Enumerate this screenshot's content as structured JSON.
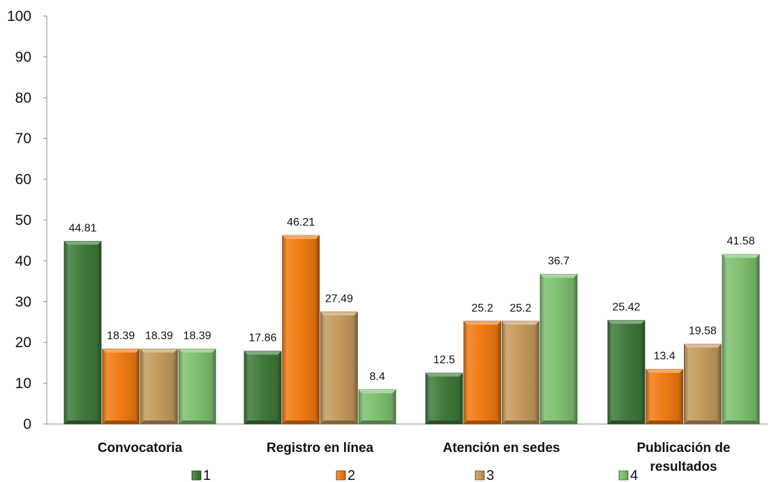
{
  "chart_data": {
    "type": "bar",
    "categories": [
      [
        "Convocatoria"
      ],
      [
        "Registro en línea"
      ],
      [
        "Atención en sedes"
      ],
      [
        "Publicación de",
        "resultados"
      ]
    ],
    "series": [
      {
        "name": "1",
        "values": [
          44.81,
          17.86,
          12.5,
          25.42
        ],
        "color": "#3f7a3a"
      },
      {
        "name": "2",
        "values": [
          18.39,
          46.21,
          25.2,
          13.4
        ],
        "color": "#f07a12"
      },
      {
        "name": "3",
        "values": [
          18.39,
          27.49,
          25.2,
          19.58
        ],
        "color": "#c49a5c"
      },
      {
        "name": "4",
        "values": [
          18.39,
          8.4,
          36.7,
          41.58
        ],
        "color": "#7dc06f"
      }
    ],
    "data_labels": [
      [
        "44.81",
        "17.86",
        "12.5",
        "25.42"
      ],
      [
        "18.39",
        "46.21",
        "25.2",
        "13.4"
      ],
      [
        "18.39",
        "27.49",
        "25.2",
        "19.58"
      ],
      [
        "18.39",
        "8.4",
        "36.7",
        "41.58"
      ]
    ],
    "y_ticks": [
      "0",
      "10",
      "20",
      "30",
      "40",
      "50",
      "60",
      "70",
      "80",
      "90",
      "100"
    ],
    "ylim": [
      0,
      100
    ],
    "grid": false,
    "legend_position": "bottom"
  }
}
